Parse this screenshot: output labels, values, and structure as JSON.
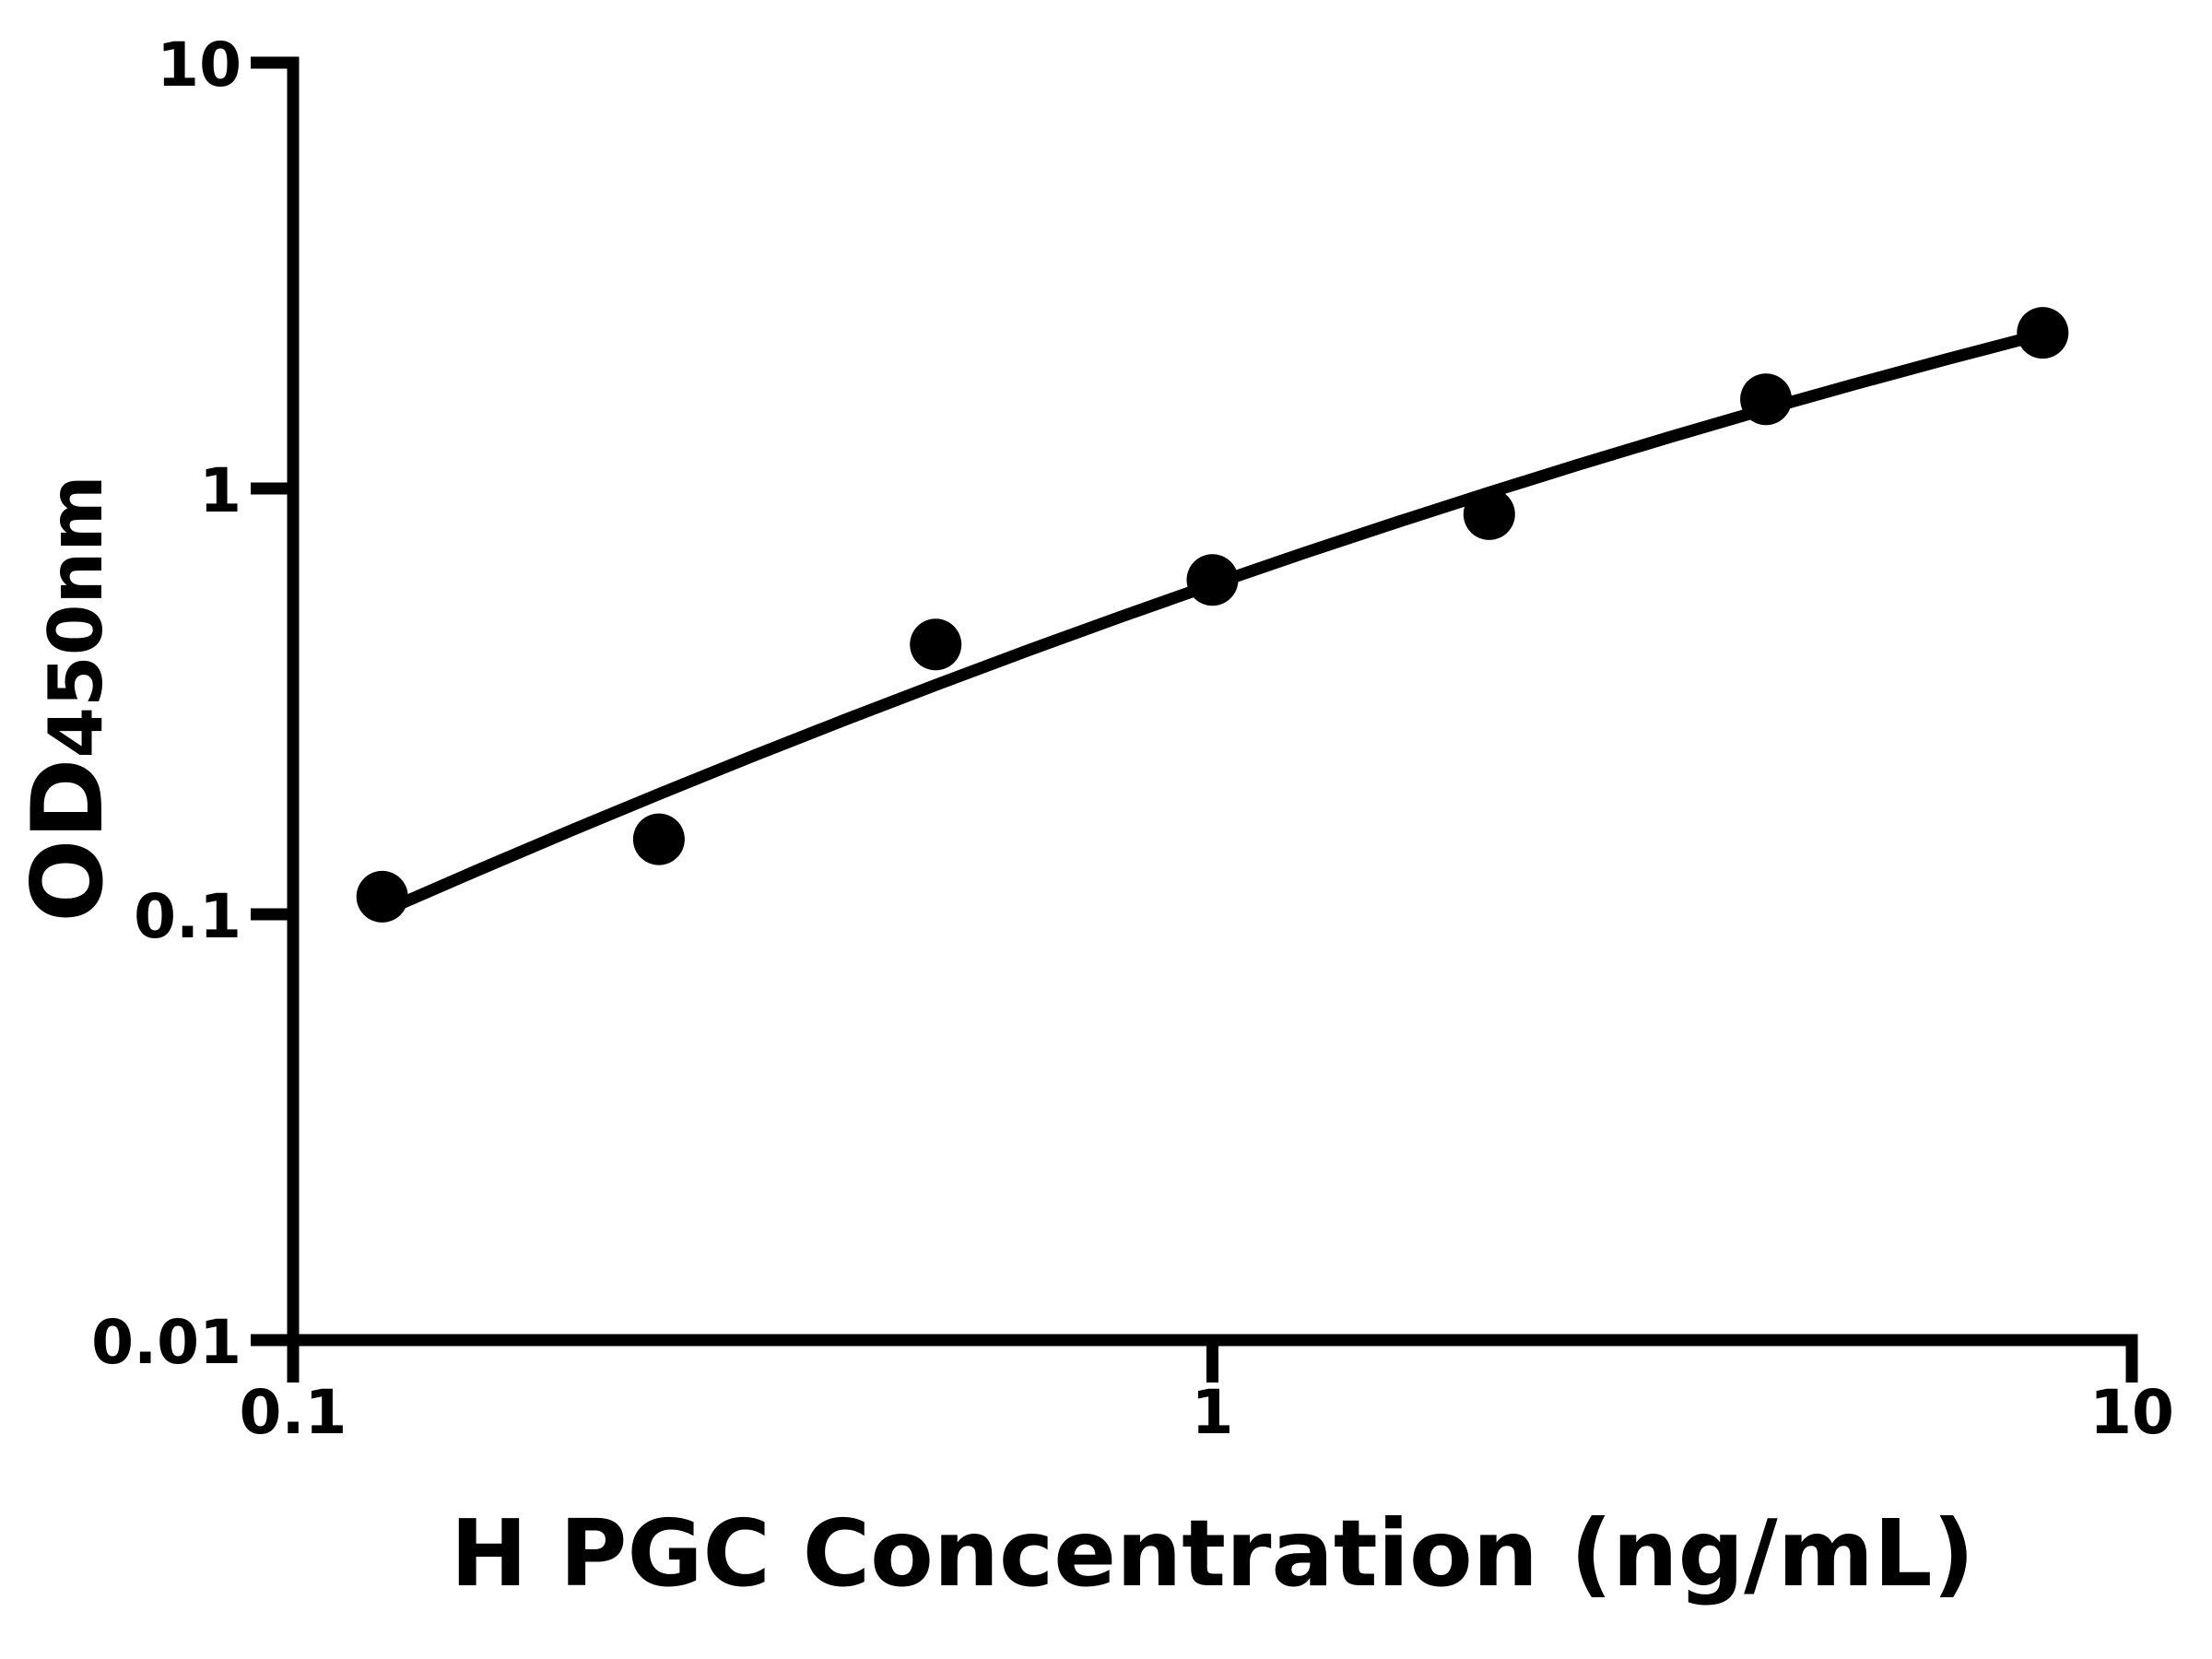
{
  "figure": {
    "background_color": "#ffffff",
    "ink_color": "#000000"
  },
  "chart_data": {
    "type": "scatter",
    "subtype": "elisa-standard-curve",
    "title": "",
    "xlabel": "H PGC Concentration (ng/mL)",
    "ylabel_main": "OD",
    "ylabel_sub": "450nm",
    "x_scale": "log10",
    "y_scale": "log10",
    "xlim": [
      0.1,
      10
    ],
    "ylim": [
      0.01,
      10
    ],
    "grid": false,
    "legend": null,
    "x_ticks": [
      {
        "value": 0.1,
        "label": "0.1"
      },
      {
        "value": 1,
        "label": "1"
      },
      {
        "value": 10,
        "label": "10"
      }
    ],
    "y_ticks": [
      {
        "value": 0.01,
        "label": "0.01"
      },
      {
        "value": 0.1,
        "label": "0.1"
      },
      {
        "value": 1,
        "label": "1"
      },
      {
        "value": 10,
        "label": "10"
      }
    ],
    "series": [
      {
        "name": "standard data points",
        "type": "scatter",
        "marker": "circle",
        "color": "#000000",
        "x": [
          0.125,
          0.25,
          0.5,
          1,
          2,
          4,
          8
        ],
        "y": [
          0.11,
          0.15,
          0.43,
          0.61,
          0.87,
          1.62,
          2.32
        ]
      },
      {
        "name": "fitted curve",
        "type": "line",
        "color": "#000000",
        "points": [
          [
            0.125,
            0.1014
          ],
          [
            0.1585,
            0.1267
          ],
          [
            0.1995,
            0.1565
          ],
          [
            0.2512,
            0.1924
          ],
          [
            0.3162,
            0.2352
          ],
          [
            0.3981,
            0.2861
          ],
          [
            0.5012,
            0.3462
          ],
          [
            0.631,
            0.4169
          ],
          [
            0.7943,
            0.4994
          ],
          [
            1,
            0.5951
          ],
          [
            1.2589,
            0.7057
          ],
          [
            1.5849,
            0.8325
          ],
          [
            1.9953,
            0.977
          ],
          [
            2.5119,
            1.1408
          ],
          [
            3.1623,
            1.3254
          ],
          [
            3.9811,
            1.5318
          ],
          [
            5.0119,
            1.7618
          ],
          [
            6.3096,
            2.0157
          ],
          [
            8,
            2.3039
          ]
        ]
      }
    ]
  }
}
